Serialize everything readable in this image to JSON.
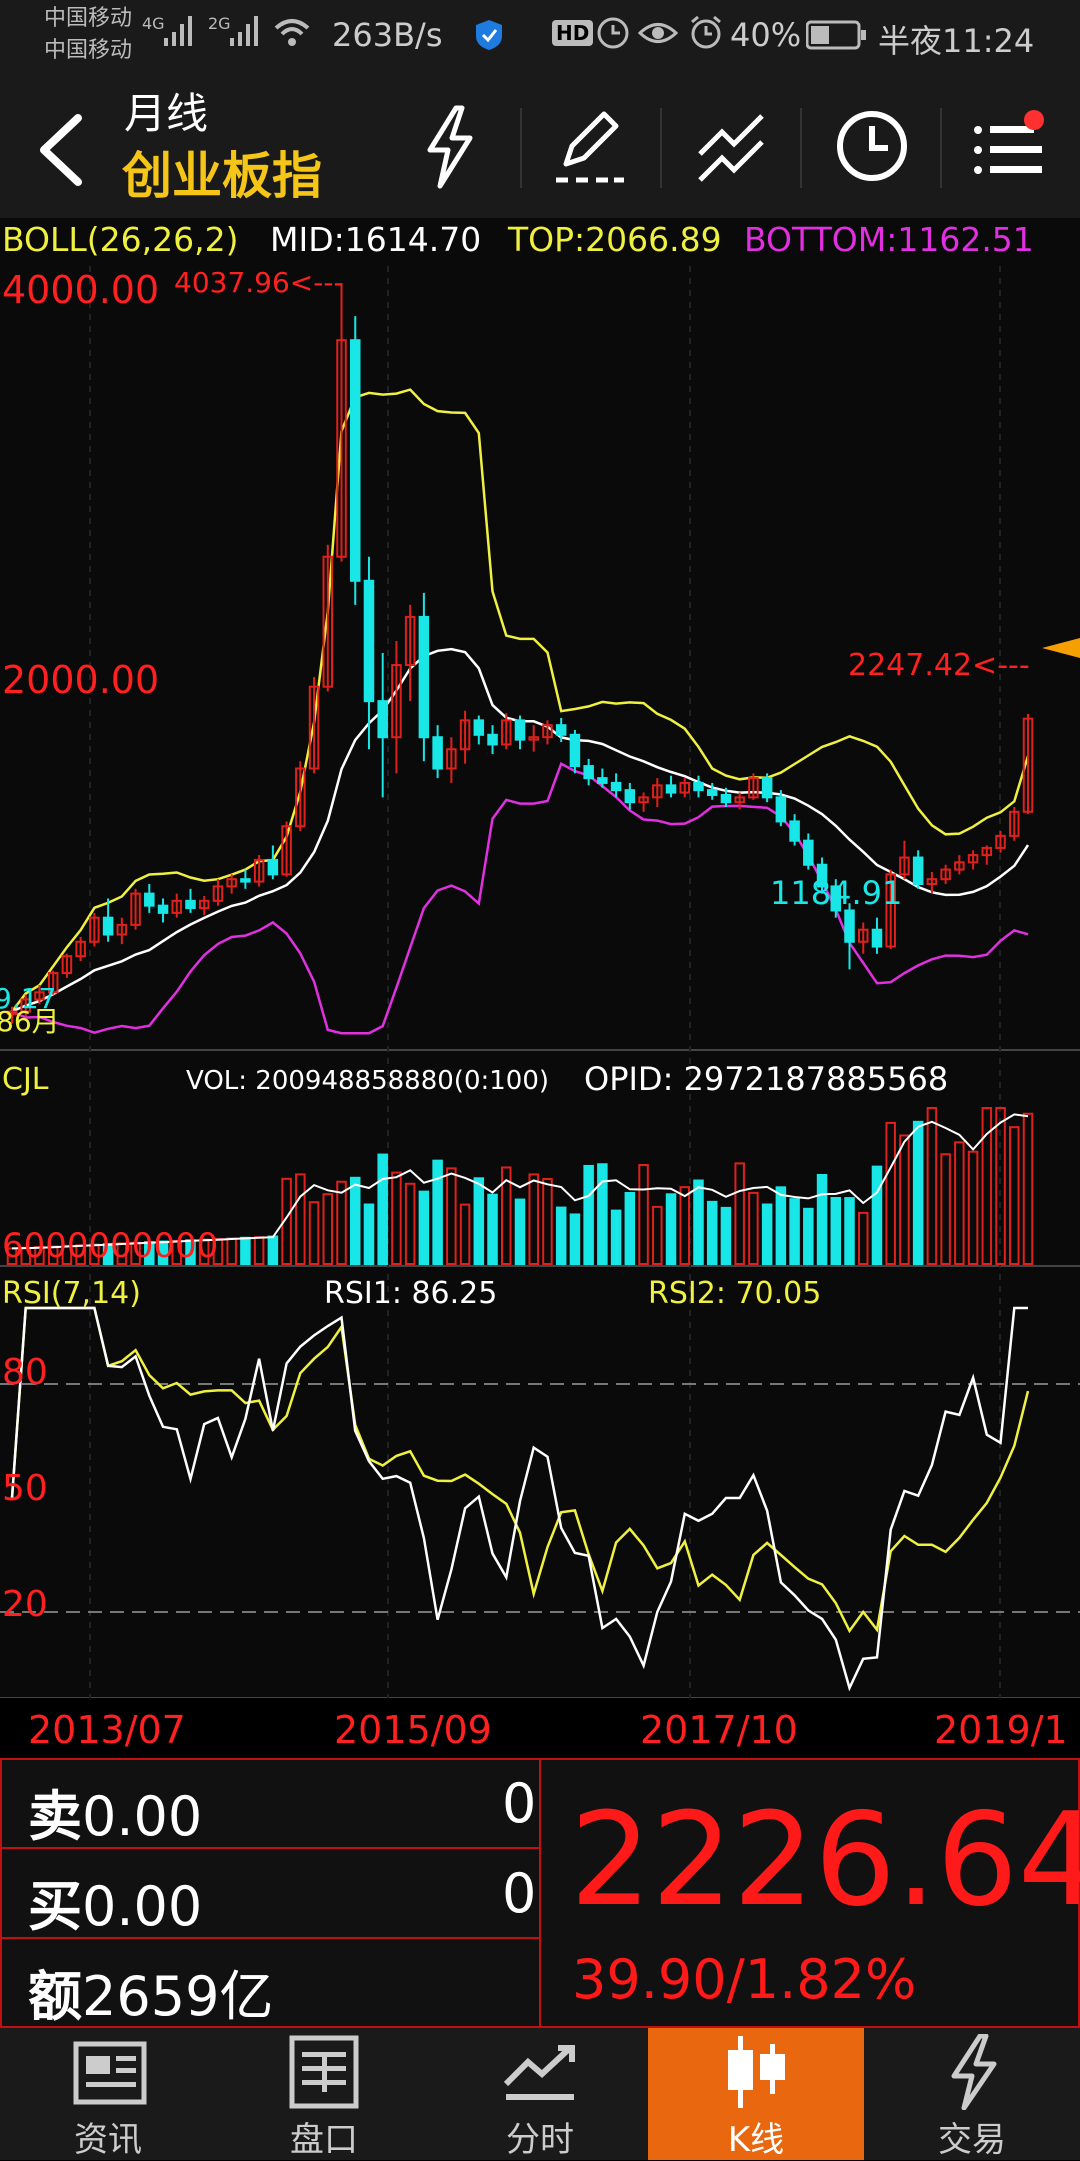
{
  "status_bar": {
    "carrier1": "中国移动",
    "carrier2": "中国移动",
    "signal1": "4G",
    "signal2": "2G",
    "speed": "263B/s",
    "hd": "HD",
    "battery": "40%",
    "time": "半夜11:24"
  },
  "header": {
    "period": "月线",
    "name": "创业板指"
  },
  "indicators": {
    "boll": "BOLL(26,26,2)",
    "mid": "MID:1614.70",
    "top": "TOP:2066.89",
    "bottom": "BOTTOM:1162.51",
    "cjl": "CJL",
    "vol": "VOL: 200948858880(0:100)",
    "opid": "OPID: 2972187885568",
    "rsi": "RSI(7,14)",
    "rsi1": "RSI1: 86.25",
    "rsi2": "RSI2: 70.05"
  },
  "chart_labels": {
    "y_4000": "4000.00",
    "y_2000": "2000.00",
    "high_mark": "4037.96<---",
    "recent_mark": "2247.42<---",
    "low_mark": "1184.91",
    "left_cut1": "9.17",
    "left_cut2": "86月",
    "vol_axis": "6000000000",
    "rsi_80": "80",
    "rsi_50": "50",
    "rsi_20": "20",
    "dates": [
      "2013/07",
      "2015/09",
      "2017/10",
      "2019/1"
    ]
  },
  "colors": {
    "rise": "#e0201a",
    "fall": "#19e6e6",
    "boll_mid": "#ffffff",
    "boll_top": "#f0f040",
    "boll_bottom": "#e030e0",
    "accent_active": "#e8670f",
    "price": "#ff1a1a"
  },
  "order_panel": {
    "sell_label": "卖",
    "sell_price": "0.00",
    "sell_qty": "0",
    "buy_label": "买",
    "buy_price": "0.00",
    "buy_qty": "0",
    "amount_label": "额",
    "amount_value": "2659亿",
    "price": "2226.64",
    "change": "39.90/1.82%"
  },
  "nav": [
    {
      "label": "资讯",
      "icon": "newspaper-icon"
    },
    {
      "label": "盘口",
      "icon": "order-book-icon"
    },
    {
      "label": "分时",
      "icon": "intraday-icon"
    },
    {
      "label": "K线",
      "icon": "candlestick-icon",
      "active": true
    },
    {
      "label": "交易",
      "icon": "trade-lightning-icon"
    }
  ],
  "chart_data": {
    "type": "candlestick",
    "title": "创业板指 月线",
    "x_ticks": [
      "2013/07",
      "2015/09",
      "2017/10",
      "2019/1"
    ],
    "ylim": [
      900,
      4100
    ],
    "annotations": [
      {
        "label": "4037.96",
        "type": "high"
      },
      {
        "label": "2247.42",
        "type": "recent high"
      },
      {
        "label": "1184.91",
        "type": "low"
      }
    ],
    "ohlc": [
      [
        1000,
        1030,
        960,
        1010
      ],
      [
        1010,
        1080,
        990,
        1060
      ],
      [
        1060,
        1120,
        1040,
        1090
      ],
      [
        1090,
        1180,
        1080,
        1170
      ],
      [
        1170,
        1250,
        1150,
        1240
      ],
      [
        1240,
        1320,
        1220,
        1300
      ],
      [
        1300,
        1420,
        1280,
        1400
      ],
      [
        1400,
        1480,
        1300,
        1330
      ],
      [
        1330,
        1400,
        1290,
        1370
      ],
      [
        1370,
        1520,
        1350,
        1500
      ],
      [
        1500,
        1540,
        1420,
        1450
      ],
      [
        1450,
        1480,
        1380,
        1420
      ],
      [
        1420,
        1500,
        1400,
        1470
      ],
      [
        1470,
        1520,
        1420,
        1440
      ],
      [
        1440,
        1490,
        1410,
        1470
      ],
      [
        1470,
        1560,
        1450,
        1530
      ],
      [
        1530,
        1580,
        1500,
        1560
      ],
      [
        1560,
        1600,
        1520,
        1550
      ],
      [
        1550,
        1660,
        1530,
        1640
      ],
      [
        1640,
        1700,
        1560,
        1580
      ],
      [
        1580,
        1800,
        1570,
        1780
      ],
      [
        1780,
        2050,
        1760,
        2020
      ],
      [
        2020,
        2400,
        2000,
        2360
      ],
      [
        2360,
        2950,
        2340,
        2900
      ],
      [
        2900,
        4037,
        2880,
        3800
      ],
      [
        3800,
        3900,
        2700,
        2800
      ],
      [
        2800,
        2900,
        2100,
        2300
      ],
      [
        2300,
        2500,
        1900,
        2150
      ],
      [
        2150,
        2550,
        2000,
        2450
      ],
      [
        2450,
        2700,
        2300,
        2650
      ],
      [
        2650,
        2750,
        2050,
        2150
      ],
      [
        2150,
        2200,
        1980,
        2020
      ],
      [
        2020,
        2150,
        1960,
        2100
      ],
      [
        2100,
        2260,
        2040,
        2220
      ],
      [
        2220,
        2240,
        2120,
        2160
      ],
      [
        2160,
        2200,
        2080,
        2120
      ],
      [
        2120,
        2250,
        2100,
        2220
      ],
      [
        2220,
        2240,
        2100,
        2140
      ],
      [
        2140,
        2200,
        2090,
        2150
      ],
      [
        2150,
        2220,
        2120,
        2200
      ],
      [
        2200,
        2230,
        2130,
        2160
      ],
      [
        2160,
        2180,
        2000,
        2030
      ],
      [
        2030,
        2060,
        1950,
        1980
      ],
      [
        1980,
        2020,
        1940,
        1960
      ],
      [
        1960,
        2000,
        1900,
        1930
      ],
      [
        1930,
        1960,
        1850,
        1880
      ],
      [
        1880,
        1920,
        1840,
        1900
      ],
      [
        1900,
        1980,
        1860,
        1950
      ],
      [
        1950,
        1990,
        1900,
        1920
      ],
      [
        1920,
        1980,
        1900,
        1960
      ],
      [
        1960,
        1990,
        1900,
        1930
      ],
      [
        1930,
        1960,
        1890,
        1910
      ],
      [
        1910,
        1940,
        1860,
        1880
      ],
      [
        1880,
        1920,
        1850,
        1900
      ],
      [
        1900,
        2000,
        1890,
        1980
      ],
      [
        1980,
        2000,
        1880,
        1900
      ],
      [
        1900,
        1930,
        1780,
        1800
      ],
      [
        1800,
        1830,
        1700,
        1720
      ],
      [
        1720,
        1750,
        1600,
        1620
      ],
      [
        1620,
        1650,
        1500,
        1530
      ],
      [
        1530,
        1560,
        1400,
        1430
      ],
      [
        1430,
        1460,
        1185,
        1300
      ],
      [
        1300,
        1380,
        1250,
        1350
      ],
      [
        1350,
        1400,
        1250,
        1280
      ],
      [
        1280,
        1600,
        1270,
        1580
      ],
      [
        1580,
        1720,
        1560,
        1650
      ],
      [
        1650,
        1680,
        1520,
        1540
      ],
      [
        1540,
        1590,
        1500,
        1560
      ],
      [
        1560,
        1620,
        1540,
        1600
      ],
      [
        1600,
        1660,
        1580,
        1630
      ],
      [
        1630,
        1680,
        1600,
        1660
      ],
      [
        1660,
        1700,
        1620,
        1690
      ],
      [
        1690,
        1760,
        1670,
        1740
      ],
      [
        1740,
        1860,
        1720,
        1840
      ],
      [
        1840,
        2247,
        1830,
        2227
      ]
    ]
  }
}
